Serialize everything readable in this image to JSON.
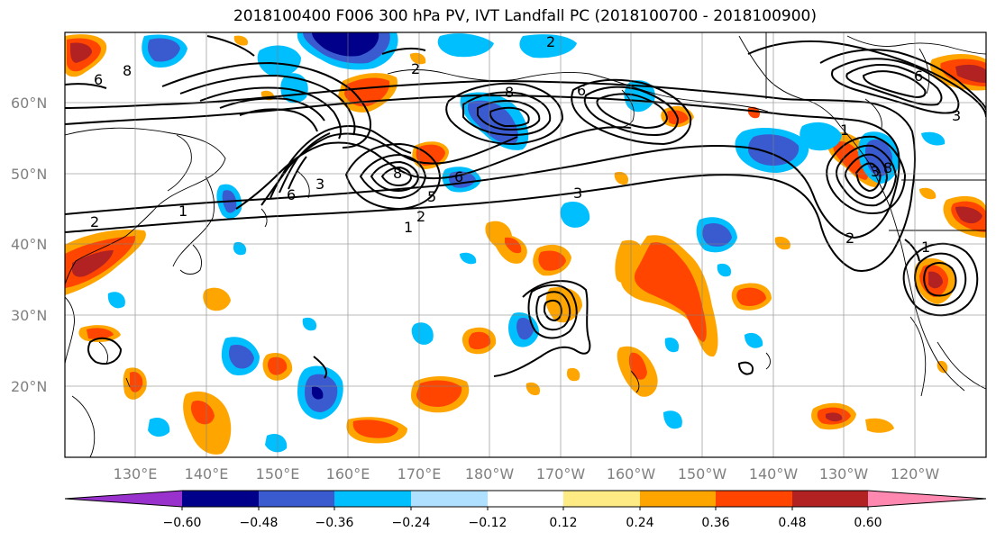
{
  "title": "2018100400 F006 300 hPa PV, IVT Landfall PC (2018100700 - 2018100900)",
  "map": {
    "lat_labels": [
      "60°N",
      "50°N",
      "40°N",
      "30°N",
      "20°N"
    ],
    "lon_labels": [
      "130°E",
      "140°E",
      "150°E",
      "160°E",
      "170°E",
      "180°W",
      "170°W",
      "160°W",
      "150°W",
      "140°W",
      "130°W",
      "120°W"
    ],
    "contour_labels": [
      "2",
      "6",
      "8",
      "3",
      "8",
      "6",
      "6",
      "8",
      "3",
      "5",
      "6",
      "2",
      "1",
      "3",
      "1",
      "2",
      "6",
      "3",
      "2",
      "1",
      "2",
      "1",
      "8"
    ]
  },
  "colorbar": {
    "tick_labels": [
      "−0.60",
      "−0.48",
      "−0.36",
      "−0.24",
      "−0.12",
      "0.12",
      "0.24",
      "0.36",
      "0.48",
      "0.60"
    ],
    "colors": [
      "#9932cc",
      "#00008b",
      "#3a5bd0",
      "#00bfff",
      "#b0e0ff",
      "#ffffff",
      "#ffeb84",
      "#ffa500",
      "#ff4500",
      "#b22222",
      "#ff88b0"
    ]
  }
}
